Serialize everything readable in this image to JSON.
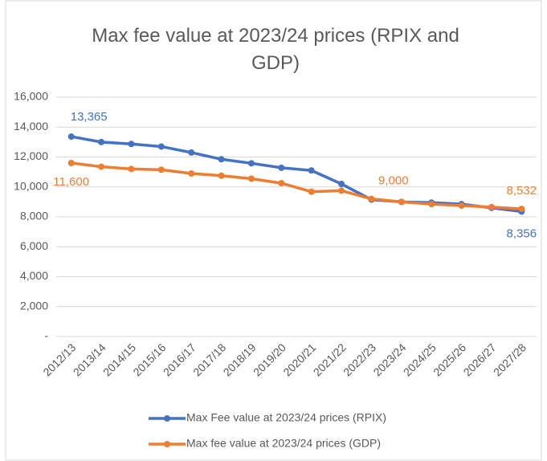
{
  "chart_data": {
    "type": "line",
    "title": "Max fee value at 2023/24 prices (RPIX and GDP)",
    "categories": [
      "2012/13",
      "2013/14",
      "2014/15",
      "2015/16",
      "2016/17",
      "2017/18",
      "2018/19",
      "2019/20",
      "2020/21",
      "2021/22",
      "2022/23",
      "2023/24",
      "2024/25",
      "2025/26",
      "2026/27",
      "2027/28"
    ],
    "series": [
      {
        "name": "Max Fee value at 2023/24 prices (RPIX)",
        "color": "#4472c4",
        "values": [
          13365,
          13000,
          12870,
          12700,
          12300,
          11850,
          11580,
          11280,
          11100,
          10200,
          9150,
          9000,
          8950,
          8850,
          8600,
          8356
        ],
        "value_labels": [
          "13,365",
          null,
          null,
          null,
          null,
          null,
          null,
          null,
          null,
          null,
          null,
          null,
          null,
          null,
          null,
          "8,356"
        ]
      },
      {
        "name": "Max fee value at 2023/24 prices (GDP)",
        "color": "#ed7d31",
        "values": [
          11600,
          11350,
          11200,
          11150,
          10900,
          10750,
          10550,
          10250,
          9680,
          9750,
          9200,
          9000,
          8850,
          8750,
          8650,
          8532
        ],
        "value_labels": [
          "11,600",
          null,
          null,
          null,
          null,
          null,
          null,
          null,
          null,
          null,
          null,
          "9,000",
          null,
          null,
          null,
          "8,532"
        ]
      }
    ],
    "ylim": [
      0,
      16000
    ],
    "yticks": [
      {
        "value": 0,
        "label": "-"
      },
      {
        "value": 2000,
        "label": "2,000"
      },
      {
        "value": 4000,
        "label": "4,000"
      },
      {
        "value": 6000,
        "label": "6,000"
      },
      {
        "value": 8000,
        "label": "8,000"
      },
      {
        "value": 10000,
        "label": "10,000"
      },
      {
        "value": 12000,
        "label": "12,000"
      },
      {
        "value": 14000,
        "label": "14,000"
      },
      {
        "value": 16000,
        "label": "16,000"
      }
    ],
    "grid": true,
    "legend": "bottom"
  }
}
